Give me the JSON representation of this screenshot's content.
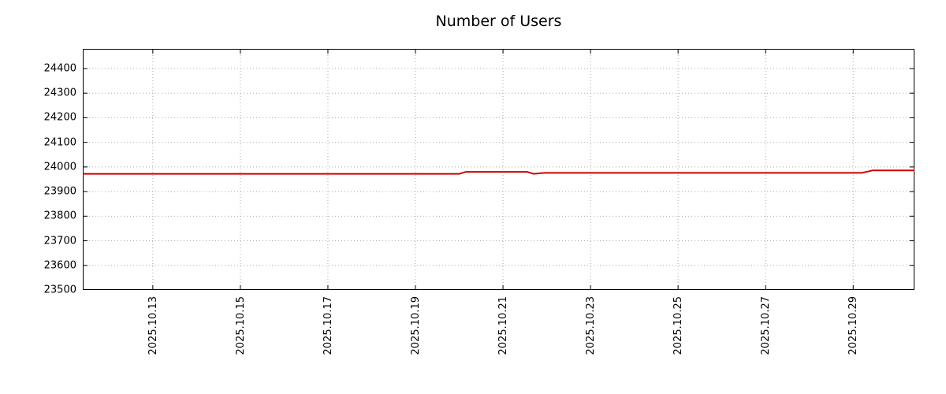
{
  "title": "Number of Users",
  "chart_data": {
    "type": "line",
    "title": "Number of Users",
    "xlabel": "",
    "ylabel": "",
    "grid": true,
    "legend": false,
    "xlim": [
      11.4,
      30.4
    ],
    "ylim": [
      23500,
      24480
    ],
    "x_ticks": [
      {
        "pos": 13,
        "label": "2025.10.13"
      },
      {
        "pos": 15,
        "label": "2025.10.15"
      },
      {
        "pos": 17,
        "label": "2025.10.17"
      },
      {
        "pos": 19,
        "label": "2025.10.19"
      },
      {
        "pos": 21,
        "label": "2025.10.21"
      },
      {
        "pos": 23,
        "label": "2025.10.23"
      },
      {
        "pos": 25,
        "label": "2025.10.25"
      },
      {
        "pos": 27,
        "label": "2025.10.27"
      },
      {
        "pos": 29,
        "label": "2025.10.29"
      }
    ],
    "y_ticks": [
      23500,
      23600,
      23700,
      23800,
      23900,
      24000,
      24100,
      24200,
      24300,
      24400
    ],
    "series": [
      {
        "name": "Number of Users",
        "color": "#cc0000",
        "points": [
          [
            11.4,
            23972
          ],
          [
            20.0,
            23972
          ],
          [
            20.15,
            23980
          ],
          [
            21.55,
            23980
          ],
          [
            21.7,
            23972
          ],
          [
            21.95,
            23976
          ],
          [
            29.2,
            23976
          ],
          [
            29.45,
            23986
          ],
          [
            30.4,
            23986
          ]
        ]
      }
    ]
  },
  "colors": {
    "line": "#cc0000",
    "grid": "#a9a9a9",
    "border": "#000000",
    "background": "#ffffff",
    "text": "#000000"
  }
}
